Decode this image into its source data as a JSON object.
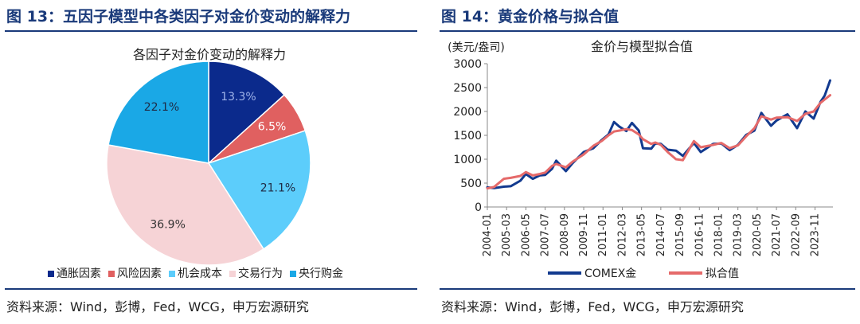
{
  "colors": {
    "accent": "#1a3a7a",
    "slice_inflation": "#0b2a8c",
    "slice_risk": "#e06060",
    "slice_opportunity": "#5ccdfb",
    "slice_trading": "#f6d3d6",
    "slice_central_bank": "#1aa8e6",
    "line_comex": "#123a8f",
    "line_fit": "#e56a6a"
  },
  "left_panel": {
    "figure_title": "图 13：五因子模型中各类因子对金价变动的解释力",
    "source": "资料来源：Wind，彭博，Fed，WCG，申万宏源研究"
  },
  "right_panel": {
    "figure_title": "图 14：黄金价格与拟合值",
    "source": "资料来源：Wind，彭博，Fed，WCG，申万宏源研究"
  },
  "chart_data": [
    {
      "type": "pie",
      "title": "各因子对金价变动的解释力",
      "labels": [
        "通胀因素",
        "风险因素",
        "机会成本",
        "交易行为",
        "央行购金"
      ],
      "values": [
        13.3,
        6.5,
        21.1,
        36.9,
        22.1
      ],
      "value_labels": [
        "13.3%",
        "6.5%",
        "21.1%",
        "36.9%",
        "22.1%"
      ],
      "start_angle_deg": 0,
      "direction": "clockwise",
      "legend_position": "bottom"
    },
    {
      "type": "line",
      "title": "金价与模型拟合值",
      "ylabel": "(美元/盎司)",
      "xlabel": "",
      "ylim": [
        0,
        3000
      ],
      "yticks": [
        0,
        500,
        1000,
        1500,
        2000,
        2500,
        3000
      ],
      "xlim": [
        "2004-01",
        "2024-12"
      ],
      "xticks": [
        "2004-01",
        "2005-03",
        "2006-05",
        "2007-07",
        "2008-09",
        "2009-11",
        "2011-01",
        "2012-03",
        "2013-05",
        "2014-07",
        "2015-09",
        "2016-11",
        "2018-01",
        "2019-03",
        "2020-05",
        "2021-07",
        "2022-09",
        "2023-11"
      ],
      "grid": false,
      "legend_position": "bottom",
      "series": [
        {
          "name": "COMEX金",
          "points": [
            [
              "2004-01",
              410
            ],
            [
              "2004-06",
              395
            ],
            [
              "2005-01",
              425
            ],
            [
              "2005-06",
              435
            ],
            [
              "2006-01",
              550
            ],
            [
              "2006-05",
              690
            ],
            [
              "2006-10",
              590
            ],
            [
              "2007-03",
              660
            ],
            [
              "2007-07",
              670
            ],
            [
              "2007-12",
              800
            ],
            [
              "2008-03",
              970
            ],
            [
              "2008-10",
              750
            ],
            [
              "2009-03",
              920
            ],
            [
              "2009-11",
              1150
            ],
            [
              "2010-06",
              1230
            ],
            [
              "2010-12",
              1400
            ],
            [
              "2011-05",
              1520
            ],
            [
              "2011-09",
              1780
            ],
            [
              "2012-01",
              1680
            ],
            [
              "2012-06",
              1590
            ],
            [
              "2012-10",
              1760
            ],
            [
              "2013-03",
              1600
            ],
            [
              "2013-06",
              1230
            ],
            [
              "2013-12",
              1220
            ],
            [
              "2014-03",
              1330
            ],
            [
              "2014-07",
              1320
            ],
            [
              "2014-12",
              1200
            ],
            [
              "2015-06",
              1180
            ],
            [
              "2015-11",
              1070
            ],
            [
              "2016-07",
              1340
            ],
            [
              "2016-12",
              1150
            ],
            [
              "2017-09",
              1320
            ],
            [
              "2018-03",
              1330
            ],
            [
              "2018-09",
              1190
            ],
            [
              "2019-03",
              1300
            ],
            [
              "2019-09",
              1510
            ],
            [
              "2020-03",
              1600
            ],
            [
              "2020-08",
              1970
            ],
            [
              "2021-03",
              1700
            ],
            [
              "2021-07",
              1810
            ],
            [
              "2022-03",
              1940
            ],
            [
              "2022-10",
              1650
            ],
            [
              "2023-04",
              2000
            ],
            [
              "2023-10",
              1850
            ],
            [
              "2024-03",
              2200
            ],
            [
              "2024-06",
              2330
            ],
            [
              "2024-10",
              2650
            ]
          ]
        },
        {
          "name": "拟合值",
          "points": [
            [
              "2004-01",
              390
            ],
            [
              "2004-06",
              420
            ],
            [
              "2005-01",
              590
            ],
            [
              "2005-06",
              610
            ],
            [
              "2006-01",
              650
            ],
            [
              "2006-05",
              730
            ],
            [
              "2006-10",
              660
            ],
            [
              "2007-03",
              690
            ],
            [
              "2007-07",
              720
            ],
            [
              "2007-12",
              860
            ],
            [
              "2008-03",
              900
            ],
            [
              "2008-10",
              830
            ],
            [
              "2009-03",
              950
            ],
            [
              "2009-11",
              1100
            ],
            [
              "2010-06",
              1280
            ],
            [
              "2010-12",
              1380
            ],
            [
              "2011-05",
              1500
            ],
            [
              "2011-09",
              1580
            ],
            [
              "2012-01",
              1600
            ],
            [
              "2012-06",
              1630
            ],
            [
              "2012-10",
              1610
            ],
            [
              "2013-03",
              1520
            ],
            [
              "2013-06",
              1420
            ],
            [
              "2013-12",
              1320
            ],
            [
              "2014-03",
              1350
            ],
            [
              "2014-07",
              1300
            ],
            [
              "2014-12",
              1150
            ],
            [
              "2015-06",
              1000
            ],
            [
              "2015-11",
              980
            ],
            [
              "2016-07",
              1380
            ],
            [
              "2016-12",
              1250
            ],
            [
              "2017-09",
              1300
            ],
            [
              "2018-03",
              1340
            ],
            [
              "2018-09",
              1230
            ],
            [
              "2019-03",
              1290
            ],
            [
              "2019-09",
              1480
            ],
            [
              "2020-03",
              1650
            ],
            [
              "2020-08",
              1900
            ],
            [
              "2021-03",
              1830
            ],
            [
              "2021-07",
              1870
            ],
            [
              "2022-03",
              1880
            ],
            [
              "2022-10",
              1800
            ],
            [
              "2023-04",
              1950
            ],
            [
              "2023-10",
              2000
            ],
            [
              "2024-03",
              2180
            ],
            [
              "2024-06",
              2250
            ],
            [
              "2024-10",
              2340
            ]
          ]
        }
      ]
    }
  ]
}
